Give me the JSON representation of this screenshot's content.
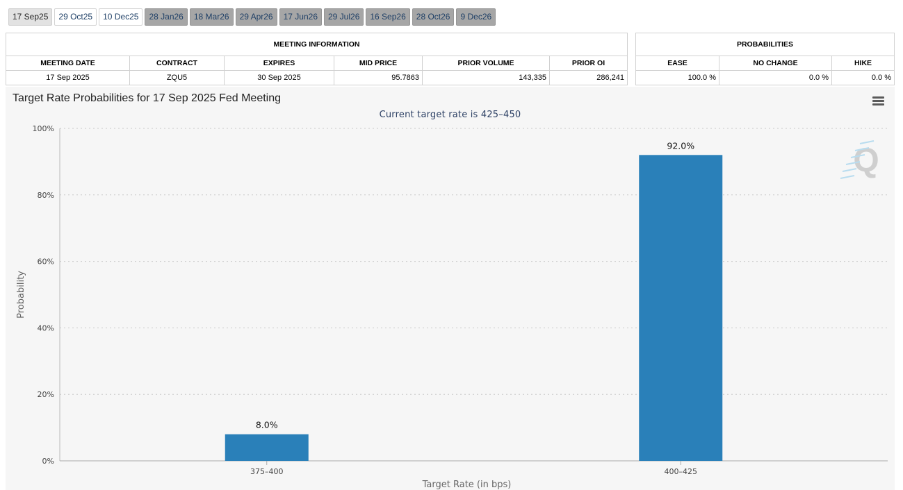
{
  "tabs": [
    {
      "label": "17 Sep25",
      "state": "selected"
    },
    {
      "label": "29 Oct25",
      "state": "active"
    },
    {
      "label": "10 Dec25",
      "state": "active"
    },
    {
      "label": "28 Jan26",
      "state": "disabled"
    },
    {
      "label": "18 Mar26",
      "state": "disabled"
    },
    {
      "label": "29 Apr26",
      "state": "disabled"
    },
    {
      "label": "17 Jun26",
      "state": "disabled"
    },
    {
      "label": "29 Jul26",
      "state": "disabled"
    },
    {
      "label": "16 Sep26",
      "state": "disabled"
    },
    {
      "label": "28 Oct26",
      "state": "disabled"
    },
    {
      "label": "9 Dec26",
      "state": "disabled"
    }
  ],
  "meeting_info": {
    "title": "MEETING INFORMATION",
    "headers": [
      "MEETING DATE",
      "CONTRACT",
      "EXPIRES",
      "MID PRICE",
      "PRIOR VOLUME",
      "PRIOR OI"
    ],
    "row": [
      "17 Sep 2025",
      "ZQU5",
      "30 Sep 2025",
      "95.7863",
      "143,335",
      "286,241"
    ]
  },
  "probabilities": {
    "title": "PROBABILITIES",
    "headers": [
      "EASE",
      "NO CHANGE",
      "HIKE"
    ],
    "row": [
      "100.0 %",
      "0.0 %",
      "0.0 %"
    ]
  },
  "chart_data": {
    "type": "bar",
    "title": "Target Rate Probabilities for 17 Sep 2025 Fed Meeting",
    "subtitle": "Current target rate is 425–450",
    "xlabel": "Target Rate (in bps)",
    "ylabel": "Probability",
    "categories": [
      "375–400",
      "400–425"
    ],
    "values": [
      8.0,
      92.0
    ],
    "data_labels": [
      "8.0%",
      "92.0%"
    ],
    "ylim": [
      0,
      100
    ],
    "yticks": [
      0,
      20,
      40,
      60,
      80,
      100
    ],
    "ytick_labels": [
      "0%",
      "20%",
      "40%",
      "60%",
      "80%",
      "100%"
    ],
    "grid": true,
    "bar_color": "#2a80b9"
  },
  "colors": {
    "bar": "#2a80b9",
    "subtitle": "#2b3f63",
    "tab_disabled": "#a6a6a6"
  },
  "icons": {
    "menu": "hamburger-menu-icon",
    "watermark": "quikstrike-logo"
  }
}
